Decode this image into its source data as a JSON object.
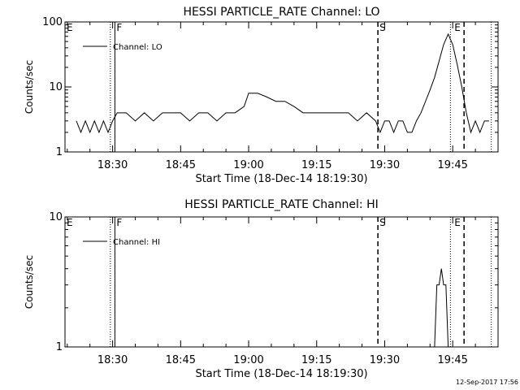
{
  "chart_data": [
    {
      "type": "line",
      "title": "HESSI PARTICLE_RATE Channel: LO",
      "xlabel": "Start Time (18-Dec-14 18:19:30)",
      "ylabel": "Counts/sec",
      "yscale": "log",
      "ylim": [
        1,
        100
      ],
      "xlim": [
        "18:19:30",
        "19:55:00"
      ],
      "x_ticks": [
        "18:30",
        "18:45",
        "19:00",
        "19:15",
        "19:30",
        "19:45"
      ],
      "y_ticks": [
        "1",
        "10",
        "100"
      ],
      "legend": {
        "position": "top-left",
        "entries": [
          "Channel: LO"
        ]
      },
      "markers": [
        {
          "label": "E",
          "time": "18:19:30",
          "style": "dotted"
        },
        {
          "label": "",
          "time": "18:29:30",
          "style": "dotted"
        },
        {
          "label": "F",
          "time": "18:30:30",
          "style": "solid"
        },
        {
          "label": "S",
          "time": "19:28:30",
          "style": "dashed"
        },
        {
          "label": "",
          "time": "19:44:30",
          "style": "dotted"
        },
        {
          "label": "E",
          "time": "19:45:00",
          "style": "none"
        },
        {
          "label": "",
          "time": "19:47:30",
          "style": "dashed"
        },
        {
          "label": "",
          "time": "19:53:30",
          "style": "dotted"
        }
      ],
      "series": [
        {
          "name": "Channel: LO",
          "x": [
            "18:22:00",
            "18:23:00",
            "18:24:00",
            "18:25:00",
            "18:26:00",
            "18:27:00",
            "18:28:00",
            "18:29:00",
            "18:30:00",
            "18:31:00",
            "18:33:00",
            "18:35:00",
            "18:37:00",
            "18:39:00",
            "18:41:00",
            "18:43:00",
            "18:45:00",
            "18:47:00",
            "18:49:00",
            "18:51:00",
            "18:53:00",
            "18:55:00",
            "18:57:00",
            "18:59:00",
            "19:00:00",
            "19:02:00",
            "19:04:00",
            "19:06:00",
            "19:08:00",
            "19:10:00",
            "19:12:00",
            "19:14:00",
            "19:16:00",
            "19:18:00",
            "19:20:00",
            "19:22:00",
            "19:24:00",
            "19:26:00",
            "19:28:00",
            "19:29:00",
            "19:30:00",
            "19:31:00",
            "19:32:00",
            "19:33:00",
            "19:34:00",
            "19:35:00",
            "19:36:00",
            "19:37:00",
            "19:38:00",
            "19:39:00",
            "19:40:00",
            "19:41:00",
            "19:42:00",
            "19:43:00",
            "19:44:00",
            "19:45:00",
            "19:46:00",
            "19:47:00",
            "19:48:00",
            "19:49:00",
            "19:50:00",
            "19:51:00",
            "19:52:00",
            "19:53:00"
          ],
          "values": [
            3,
            2,
            3,
            2,
            3,
            2,
            3,
            2,
            3,
            4,
            4,
            3,
            4,
            3,
            4,
            4,
            4,
            3,
            4,
            4,
            3,
            4,
            4,
            5,
            8,
            8,
            7,
            6,
            6,
            5,
            4,
            4,
            4,
            4,
            4,
            4,
            3,
            4,
            3,
            2,
            3,
            3,
            2,
            3,
            3,
            2,
            2,
            3,
            4,
            6,
            9,
            14,
            25,
            45,
            65,
            45,
            22,
            10,
            4,
            2,
            3,
            2,
            3,
            3
          ]
        }
      ]
    },
    {
      "type": "line",
      "title": "HESSI PARTICLE_RATE Channel: HI",
      "xlabel": "Start Time (18-Dec-14 18:19:30)",
      "ylabel": "Counts/sec",
      "yscale": "log",
      "ylim": [
        1,
        10
      ],
      "xlim": [
        "18:19:30",
        "19:55:00"
      ],
      "x_ticks": [
        "18:30",
        "18:45",
        "19:00",
        "19:15",
        "19:30",
        "19:45"
      ],
      "y_ticks": [
        "1",
        "10"
      ],
      "legend": {
        "position": "top-left",
        "entries": [
          "Channel: HI"
        ]
      },
      "markers": [
        {
          "label": "E",
          "time": "18:19:30",
          "style": "dotted"
        },
        {
          "label": "",
          "time": "18:29:30",
          "style": "dotted"
        },
        {
          "label": "F",
          "time": "18:30:30",
          "style": "solid"
        },
        {
          "label": "S",
          "time": "19:28:30",
          "style": "dashed"
        },
        {
          "label": "",
          "time": "19:44:30",
          "style": "dotted"
        },
        {
          "label": "E",
          "time": "19:45:00",
          "style": "none"
        },
        {
          "label": "",
          "time": "19:47:30",
          "style": "dashed"
        },
        {
          "label": "",
          "time": "19:53:30",
          "style": "dotted"
        }
      ],
      "series": [
        {
          "name": "Channel: HI",
          "x": [
            "19:41:00",
            "19:41:30",
            "19:42:00",
            "19:42:30",
            "19:43:00",
            "19:43:30",
            "19:44:00"
          ],
          "values": [
            1,
            3,
            3,
            4,
            3,
            3,
            1
          ]
        }
      ]
    }
  ],
  "footer": {
    "timestamp": "12-Sep-2017 17:56"
  }
}
